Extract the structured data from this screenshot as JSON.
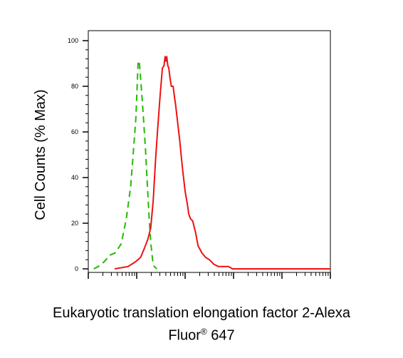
{
  "chart_data": {
    "type": "area",
    "xlabel_line1": "Eukaryotic translation elongation factor 2-Alexa",
    "xlabel_line2_prefix": "Fluor",
    "xlabel_line2_sup": "®",
    "xlabel_line2_suffix": " 647",
    "ylabel": "Cell Counts (% Max)",
    "ylim": [
      0,
      100
    ],
    "yticks": [
      "0",
      "20",
      "40",
      "60",
      "80",
      "100"
    ],
    "xscale": "log",
    "xlim": [
      1,
      100000
    ],
    "grid": false,
    "series": [
      {
        "style": "dashed",
        "color": "#22bb00",
        "x": [
          1.3,
          1.6,
          2.1,
          2.8,
          3.6,
          4.8,
          6.1,
          7.5,
          8.6,
          9.6,
          10.3,
          10.7,
          11.3,
          12.3,
          13.7,
          15.2,
          16.7,
          18.2,
          19.6,
          21.3,
          23.0,
          26
        ],
        "y": [
          0,
          1,
          3,
          6,
          7,
          11,
          22,
          36,
          52,
          66,
          82,
          91,
          91,
          81,
          67,
          52,
          36,
          21,
          11,
          4,
          1,
          0
        ]
      },
      {
        "style": "solid",
        "color": "#ee1111",
        "x": [
          3.5,
          6.6,
          9.3,
          12,
          14.4,
          17,
          19.5,
          21.9,
          24.5,
          27.2,
          30.5,
          34.0,
          36.6,
          38.6,
          40.1,
          41.7,
          43.9,
          46.1,
          48.4,
          51.8,
          56.5,
          60.5,
          63.5,
          68.5,
          77.7,
          88.1,
          100,
          112,
          119,
          129,
          143,
          164,
          186,
          222,
          266,
          317,
          393,
          491,
          628,
          791,
          950,
          1100,
          1500,
          3000,
          10000,
          100000
        ],
        "y": [
          0,
          1,
          3,
          5,
          9,
          13,
          18,
          30,
          48,
          62,
          76,
          88,
          89,
          93,
          91,
          93,
          89,
          88,
          84,
          80,
          80,
          75,
          72,
          66,
          56,
          44,
          34,
          28,
          24,
          22,
          21,
          16,
          10,
          7,
          5,
          4,
          2,
          1,
          1,
          1,
          0,
          0,
          0,
          0,
          0,
          0
        ]
      }
    ]
  }
}
